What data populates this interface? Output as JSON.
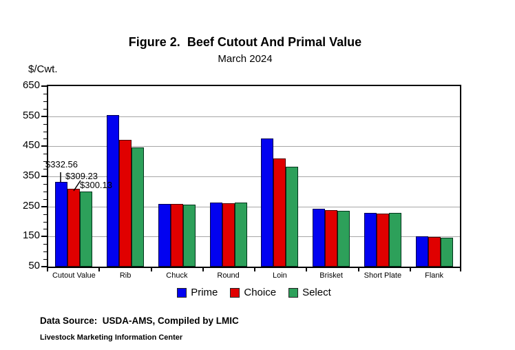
{
  "header": {
    "title": "Figure 2.  Beef Cutout And Primal Value",
    "subtitle": "March 2024",
    "unit_label": "$/Cwt."
  },
  "chart_data": {
    "type": "bar",
    "categories": [
      "Cutout Value",
      "Rib",
      "Chuck",
      "Round",
      "Loin",
      "Brisket",
      "Short Plate",
      "Flank"
    ],
    "series": [
      {
        "name": "Prime",
        "color": "#0202F0",
        "border": "#000050",
        "values": [
          332.56,
          553,
          258,
          263,
          475,
          243,
          228,
          150
        ]
      },
      {
        "name": "Choice",
        "color": "#E00000",
        "border": "#500000",
        "values": [
          309.23,
          472,
          258,
          260,
          410,
          238,
          227,
          149
        ]
      },
      {
        "name": "Select",
        "color": "#2DA05A",
        "border": "#00331a",
        "values": [
          300.13,
          446,
          256,
          263,
          382,
          235,
          228,
          146
        ]
      }
    ],
    "ylabel": "$/Cwt.",
    "ylim": [
      50,
      650
    ],
    "y_major_ticks": [
      50,
      150,
      250,
      350,
      450,
      550,
      650
    ],
    "y_minor_step": 25,
    "grid": "horizontal-major",
    "grid_color": "#a6a6a6",
    "legend_position": "bottom",
    "annotations": [
      {
        "text": "$332.56",
        "series": "Prime",
        "category": "Cutout Value",
        "value": 332.56
      },
      {
        "text": "$309.23",
        "series": "Choice",
        "category": "Cutout Value",
        "value": 309.23
      },
      {
        "text": "$300.13",
        "series": "Select",
        "category": "Cutout Value",
        "value": 300.13
      }
    ]
  },
  "footer": {
    "line1": "Data Source:  USDA-AMS, Compiled by LMIC",
    "line2": "Livestock Marketing Information Center"
  }
}
